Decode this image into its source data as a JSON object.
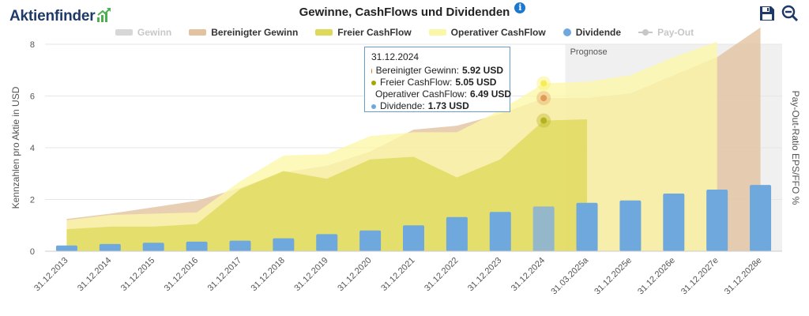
{
  "brand": {
    "name": "Aktienfinder"
  },
  "title": "Gewinne, CashFlows und Dividenden",
  "legend": [
    {
      "key": "gewinn",
      "label": "Gewinn",
      "color": "#d7d7d7",
      "swatch": "bar",
      "enabled": false
    },
    {
      "key": "bereinigt",
      "label": "Bereinigter Gewinn",
      "color": "#e2c29f",
      "swatch": "bar",
      "enabled": true
    },
    {
      "key": "fcf",
      "label": "Freier CashFlow",
      "color": "#dfd95a",
      "swatch": "bar",
      "enabled": true
    },
    {
      "key": "ocf",
      "label": "Operativer CashFlow",
      "color": "#fbf7a8",
      "swatch": "bar",
      "enabled": true
    },
    {
      "key": "dividende",
      "label": "Dividende",
      "color": "#6fa8dc",
      "swatch": "dot",
      "enabled": true
    },
    {
      "key": "payout",
      "label": "Pay-Out",
      "color": "#c7c7c7",
      "swatch": "line",
      "enabled": false
    }
  ],
  "prognose_label": "Prognose",
  "tooltip": {
    "date": "31.12.2024",
    "rows": [
      {
        "label": "Bereinigter Gewinn:",
        "value": "5.92 USD",
        "color": "#e07b2c"
      },
      {
        "label": "Freier CashFlow:",
        "value": "5.05 USD",
        "color": "#a6a600"
      },
      {
        "label": "Operativer CashFlow:",
        "value": "6.49 USD",
        "color": "#f2ea3a"
      },
      {
        "label": "Dividende:",
        "value": "1.73 USD",
        "color": "#6fa8dc"
      }
    ]
  },
  "chart_data": {
    "type": "area",
    "categories": [
      "31.12.2013",
      "31.12.2014",
      "31.12.2015",
      "31.12.2016",
      "31.12.2017",
      "31.12.2018",
      "31.12.2019",
      "31.12.2020",
      "31.12.2021",
      "31.12.2022",
      "31.12.2023",
      "31.12.2024",
      "31.03.2025a",
      "31.12.2025e",
      "31.12.2026e",
      "31.12.2027e",
      "31.12.2028e"
    ],
    "ylabel": "Kennzahlen pro Aktie in USD",
    "y2label": "Pay-Out-Ratio EPS/FFO %",
    "ylim": [
      0,
      8
    ],
    "yticks": [
      0,
      2,
      4,
      6,
      8
    ],
    "forecast_start": "31.03.2025a",
    "highlight": "31.12.2024",
    "series": [
      {
        "name": "Bereinigter Gewinn",
        "type": "area",
        "color": "#e2c29f",
        "values": [
          1.25,
          1.45,
          1.7,
          1.95,
          2.45,
          3.05,
          3.3,
          3.85,
          4.7,
          4.85,
          5.3,
          5.92,
          5.92,
          6.1,
          6.8,
          7.5,
          8.65
        ]
      },
      {
        "name": "Operativer CashFlow",
        "type": "area",
        "color": "#fbf7a8",
        "values": [
          1.2,
          1.4,
          1.45,
          1.5,
          2.7,
          3.7,
          3.75,
          4.45,
          4.6,
          4.6,
          5.45,
          6.49,
          6.55,
          6.8,
          7.5,
          8.1,
          null
        ]
      },
      {
        "name": "Freier CashFlow",
        "type": "area",
        "color": "#dfd95a",
        "values": [
          0.85,
          0.95,
          0.95,
          1.05,
          2.4,
          3.1,
          2.8,
          3.55,
          3.65,
          2.85,
          3.55,
          5.05,
          5.1,
          null,
          null,
          null,
          null
        ]
      },
      {
        "name": "Dividende",
        "type": "bar",
        "color": "#6fa8dc",
        "values": [
          0.22,
          0.28,
          0.33,
          0.37,
          0.41,
          0.5,
          0.66,
          0.8,
          1.0,
          1.32,
          1.52,
          1.73,
          1.87,
          1.96,
          2.23,
          2.38,
          2.56
        ]
      }
    ]
  }
}
